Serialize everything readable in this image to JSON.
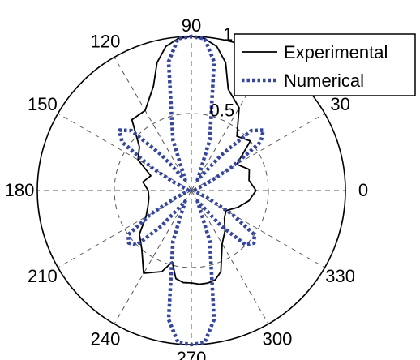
{
  "chart_data": {
    "type": "polar-line",
    "title": "",
    "angle_unit": "degrees",
    "r_lim": [
      0,
      1
    ],
    "r_ticks": [
      {
        "value": 0.5,
        "label": "0.5"
      },
      {
        "value": 1,
        "label": "1"
      }
    ],
    "r_tick_angle_deg": 80,
    "angle_ticks": [
      {
        "deg": 0,
        "label": "0"
      },
      {
        "deg": 30,
        "label": "30"
      },
      {
        "deg": 60,
        "label": ""
      },
      {
        "deg": 90,
        "label": "90"
      },
      {
        "deg": 120,
        "label": "120"
      },
      {
        "deg": 150,
        "label": "150"
      },
      {
        "deg": 180,
        "label": "180"
      },
      {
        "deg": 210,
        "label": "210"
      },
      {
        "deg": 240,
        "label": "240"
      },
      {
        "deg": 270,
        "label": "270"
      },
      {
        "deg": 300,
        "label": "300"
      },
      {
        "deg": 330,
        "label": "330"
      }
    ],
    "grid": true,
    "legend_position": "top-right",
    "series": [
      {
        "name": "Experimental",
        "color": "#000000",
        "style": "solid",
        "theta_deg": [
          0,
          10,
          20,
          30,
          40,
          50,
          60,
          70,
          75,
          80,
          85,
          90,
          95,
          100,
          105,
          110,
          120,
          130,
          140,
          150,
          160,
          170,
          180,
          190,
          200,
          210,
          220,
          230,
          240,
          250,
          255,
          260,
          265,
          270,
          275,
          280,
          285,
          290,
          300,
          310,
          320,
          330,
          340,
          350,
          360
        ],
        "r": [
          0.42,
          0.38,
          0.4,
          0.34,
          0.5,
          0.46,
          0.62,
          0.7,
          0.86,
          0.95,
          0.99,
          1.0,
          0.99,
          0.95,
          0.86,
          0.72,
          0.6,
          0.6,
          0.44,
          0.4,
          0.28,
          0.32,
          0.28,
          0.28,
          0.3,
          0.34,
          0.44,
          0.5,
          0.62,
          0.56,
          0.48,
          0.58,
          0.6,
          0.6,
          0.61,
          0.61,
          0.6,
          0.56,
          0.4,
          0.34,
          0.28,
          0.26,
          0.32,
          0.38,
          0.42
        ]
      },
      {
        "name": "Numerical",
        "color": "#3344aa",
        "style": "dotted",
        "theta_deg": [
          0,
          15,
          25,
          30,
          35,
          40,
          45,
          50,
          55,
          60,
          70,
          80,
          85,
          90,
          95,
          100,
          110,
          120,
          125,
          130,
          135,
          140,
          145,
          150,
          155,
          165,
          180,
          195,
          205,
          210,
          215,
          220,
          225,
          230,
          235,
          240,
          250,
          260,
          265,
          270,
          275,
          280,
          290,
          300,
          305,
          310,
          315,
          320,
          325,
          330,
          335,
          345,
          360
        ],
        "r": [
          0.02,
          0.03,
          0.12,
          0.3,
          0.55,
          0.61,
          0.55,
          0.3,
          0.12,
          0.08,
          0.35,
          0.85,
          0.99,
          1.0,
          0.99,
          0.85,
          0.35,
          0.08,
          0.12,
          0.3,
          0.55,
          0.61,
          0.55,
          0.3,
          0.12,
          0.03,
          0.02,
          0.03,
          0.12,
          0.3,
          0.5,
          0.53,
          0.5,
          0.3,
          0.12,
          0.08,
          0.35,
          0.85,
          0.99,
          1.0,
          0.99,
          0.85,
          0.35,
          0.08,
          0.12,
          0.3,
          0.5,
          0.53,
          0.5,
          0.3,
          0.12,
          0.03,
          0.02
        ]
      }
    ]
  }
}
